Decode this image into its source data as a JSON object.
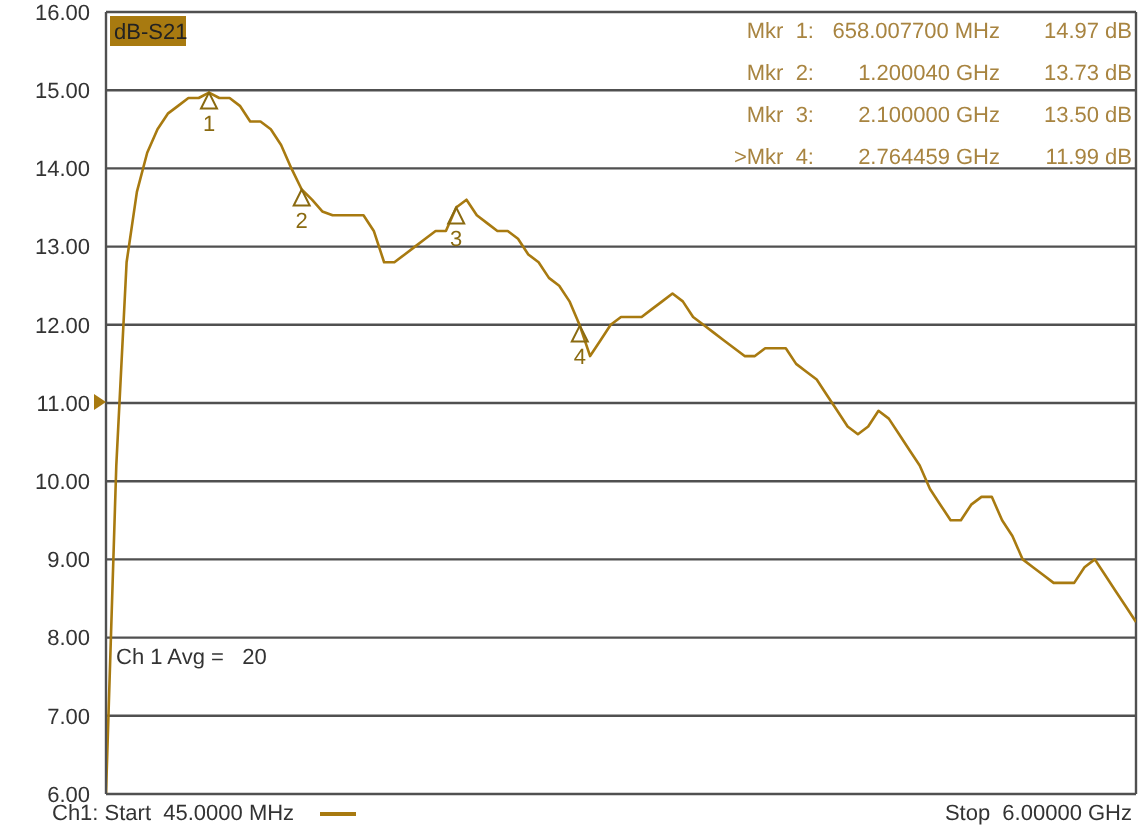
{
  "chart_data": {
    "type": "line",
    "legend": "top left",
    "grid": true,
    "tick_labels": "y",
    "marker": "none",
    "categories": [
      null,
      null,
      null,
      null,
      null,
      null,
      null,
      null,
      null,
      null,
      null,
      null,
      null,
      null,
      null,
      null,
      null,
      null,
      null,
      null,
      null,
      null,
      null,
      null,
      null,
      null,
      null,
      null,
      null,
      null,
      null,
      null,
      null,
      null,
      null,
      null,
      null,
      null,
      null,
      null,
      null,
      null,
      null,
      null,
      null,
      null,
      null,
      null,
      null,
      null,
      null,
      null,
      null,
      null,
      null,
      null,
      null,
      null,
      null,
      null,
      null,
      null,
      null,
      null,
      null,
      null,
      null,
      null,
      null,
      null,
      null,
      null,
      null,
      null,
      null,
      null,
      null,
      null,
      null,
      null,
      null,
      null,
      null,
      null,
      null,
      null,
      null,
      null,
      null,
      null,
      null,
      null,
      null,
      null,
      null,
      null,
      null,
      null,
      null,
      null,
      null
    ],
    "ylim": [
      6,
      16
    ],
    "yticks": [
      {
        "value": 6,
        "label": "6.00"
      },
      {
        "value": 7,
        "label": "7.00"
      },
      {
        "value": 8,
        "label": "8.00"
      },
      {
        "value": 9,
        "label": "9.00"
      },
      {
        "value": 10,
        "label": "10.00"
      },
      {
        "value": 11,
        "label": "11.00"
      },
      {
        "value": 12,
        "label": "12.00"
      },
      {
        "value": 13,
        "label": "13.00"
      },
      {
        "value": 14,
        "label": "14.00"
      },
      {
        "value": 15,
        "label": "15.00"
      },
      {
        "value": 16,
        "label": "16.00"
      }
    ],
    "series": [
      {
        "name": "dB-S21",
        "color": "#a87a10",
        "values": [
          6.0,
          10.2,
          12.8,
          13.7,
          14.2,
          14.5,
          14.7,
          14.8,
          14.9,
          14.9,
          14.97,
          14.9,
          14.9,
          14.8,
          14.6,
          14.6,
          14.5,
          14.3,
          14.0,
          13.73,
          13.6,
          13.45,
          13.4,
          13.4,
          13.4,
          13.4,
          13.2,
          12.8,
          12.8,
          12.9,
          13.0,
          13.1,
          13.2,
          13.2,
          13.5,
          13.6,
          13.4,
          13.3,
          13.2,
          13.2,
          13.1,
          12.9,
          12.8,
          12.6,
          12.5,
          12.3,
          11.99,
          11.6,
          11.8,
          12.0,
          12.1,
          12.1,
          12.1,
          12.2,
          12.3,
          12.4,
          12.3,
          12.1,
          12.0,
          11.9,
          11.8,
          11.7,
          11.6,
          11.6,
          11.7,
          11.7,
          11.7,
          11.5,
          11.4,
          11.3,
          11.1,
          10.9,
          10.7,
          10.6,
          10.7,
          10.9,
          10.8,
          10.6,
          10.4,
          10.2,
          9.9,
          9.7,
          9.5,
          9.5,
          9.7,
          9.8,
          9.8,
          9.5,
          9.3,
          9.0,
          8.9,
          8.8,
          8.7,
          8.7,
          8.7,
          8.9,
          9.0,
          8.8,
          8.6,
          8.4,
          8.2
        ]
      }
    ],
    "annotations": [
      "Mkr  1:",
      "658.007700 MHz",
      "14.97 dB",
      "Mkr  2:",
      "1.200040 GHz",
      "13.73 dB",
      "Mkr  3:",
      "2.100000 GHz",
      "13.50 dB",
      ">Mkr  4:",
      "2.764459 GHz",
      "11.99 dB",
      "Ch 1 Avg =   20",
      "Ch1: Start  45.0000 MHz",
      "Stop  6.00000 GHz",
      {
        "text": "1",
        "y": 14.97
      },
      {
        "text": "2",
        "y": 13.73
      },
      {
        "text": "3",
        "y": 13.5
      },
      {
        "text": "4",
        "y": 11.99
      }
    ]
  }
}
